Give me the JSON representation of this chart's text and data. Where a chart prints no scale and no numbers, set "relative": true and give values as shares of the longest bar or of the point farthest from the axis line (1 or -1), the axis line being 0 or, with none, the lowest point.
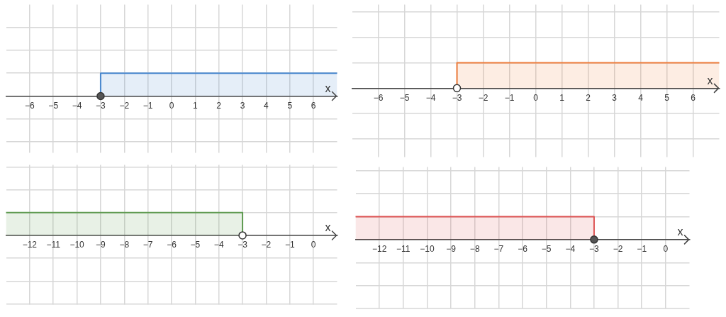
{
  "chart_data": [
    {
      "type": "area",
      "relative": true,
      "xlabel": "x",
      "xlim": [
        -7,
        7
      ],
      "xticks": [
        {
          "value": -6,
          "label": "−6"
        },
        {
          "value": -5,
          "label": "−5"
        },
        {
          "value": -4,
          "label": "−4"
        },
        {
          "value": -3,
          "label": "−3"
        },
        {
          "value": -2,
          "label": "−2"
        },
        {
          "value": -1,
          "label": "−1"
        },
        0,
        1,
        2,
        3,
        4,
        5,
        6
      ],
      "grid": true,
      "series": [
        {
          "color": "#4a88cf",
          "x": [
            -3,
            -3,
            7
          ],
          "values": [
            0,
            1,
            1
          ]
        },
        {
          "type": "scatter",
          "color": "#555555",
          "marker": "circle",
          "x": [
            -3
          ],
          "values": [
            0
          ]
        }
      ]
    },
    {
      "type": "area",
      "relative": true,
      "xlabel": "x",
      "xlim": [
        -7,
        7
      ],
      "xticks": [
        {
          "value": -6,
          "label": "−6"
        },
        {
          "value": -5,
          "label": "−5"
        },
        {
          "value": -4,
          "label": "−4"
        },
        {
          "value": -3,
          "label": "−3"
        },
        {
          "value": -2,
          "label": "−2"
        },
        {
          "value": -1,
          "label": "−1"
        },
        0,
        1,
        2,
        3,
        4,
        5,
        6
      ],
      "grid": true,
      "series": [
        {
          "color": "#ee7d3c",
          "x": [
            -3,
            -3,
            7
          ],
          "values": [
            0,
            1,
            1
          ]
        },
        {
          "type": "scatter",
          "color": "#ffffff",
          "marker": "circle",
          "x": [
            -3
          ],
          "values": [
            0
          ]
        }
      ]
    },
    {
      "type": "area",
      "relative": true,
      "xlabel": "x",
      "xlim": [
        -13,
        1
      ],
      "xticks": [
        {
          "value": -12,
          "label": "−12"
        },
        {
          "value": -11,
          "label": "−11"
        },
        {
          "value": -10,
          "label": "−10"
        },
        {
          "value": -9,
          "label": "−9"
        },
        {
          "value": -8,
          "label": "−8"
        },
        {
          "value": -7,
          "label": "−7"
        },
        {
          "value": -6,
          "label": "−6"
        },
        {
          "value": -5,
          "label": "−5"
        },
        {
          "value": -4,
          "label": "−4"
        },
        {
          "value": -3,
          "label": "−3"
        },
        {
          "value": -2,
          "label": "−2"
        },
        {
          "value": -1,
          "label": "−1"
        },
        0
      ],
      "grid": true,
      "series": [
        {
          "color": "#5e9a4f",
          "x": [
            -13,
            -3,
            -3
          ],
          "values": [
            1,
            1,
            0
          ]
        },
        {
          "type": "scatter",
          "color": "#ffffff",
          "marker": "circle",
          "x": [
            -3
          ],
          "values": [
            0
          ]
        }
      ]
    },
    {
      "type": "area",
      "relative": true,
      "xlabel": "x",
      "xlim": [
        -13,
        1
      ],
      "xticks": [
        {
          "value": -12,
          "label": "−12"
        },
        {
          "value": -11,
          "label": "−11"
        },
        {
          "value": -10,
          "label": "−10"
        },
        {
          "value": -9,
          "label": "−9"
        },
        {
          "value": -8,
          "label": "−8"
        },
        {
          "value": -7,
          "label": "−7"
        },
        {
          "value": -6,
          "label": "−6"
        },
        {
          "value": -5,
          "label": "−5"
        },
        {
          "value": -4,
          "label": "−4"
        },
        {
          "value": -3,
          "label": "−3"
        },
        {
          "value": -2,
          "label": "−2"
        },
        {
          "value": -1,
          "label": "−1"
        },
        0
      ],
      "grid": true,
      "series": [
        {
          "color": "#de5454",
          "x": [
            -13,
            -3,
            -3
          ],
          "values": [
            1,
            1,
            0
          ]
        },
        {
          "type": "scatter",
          "color": "#555555",
          "marker": "circle",
          "x": [
            -3
          ],
          "values": [
            0
          ]
        }
      ]
    }
  ]
}
